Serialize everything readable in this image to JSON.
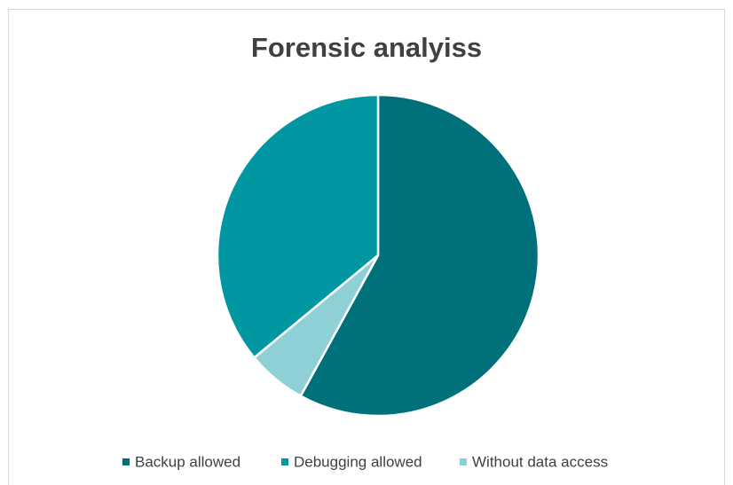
{
  "chart_data": {
    "type": "pie",
    "title": "Forensic analyiss",
    "categories": [
      "Backup allowed",
      "Debugging allowed",
      "Without data access"
    ],
    "values": [
      58,
      36,
      6
    ],
    "colors": [
      "#00707a",
      "#0097a3",
      "#8ed0d5"
    ],
    "legend": "bottom"
  }
}
